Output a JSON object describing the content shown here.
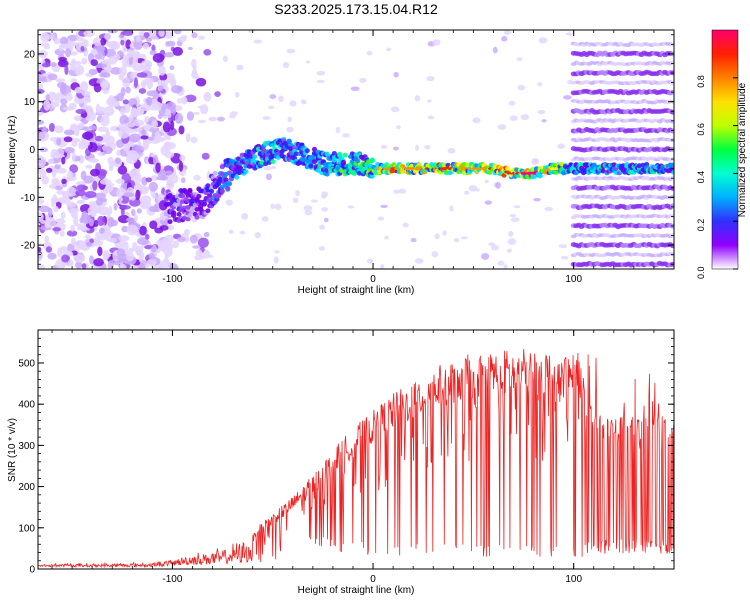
{
  "figure": {
    "title": "S233.2025.173.15.04.R12"
  },
  "chart_data": [
    {
      "type": "heatmap",
      "title": "S233.2025.173.15.04.R12",
      "xlabel": "Height of straight line (km)",
      "ylabel": "Frequency (Hz)",
      "xlim": [
        -167,
        150
      ],
      "ylim": [
        -25,
        25
      ],
      "xticks": [
        -100,
        0,
        100
      ],
      "xtick_labels": [
        "-100",
        "0",
        "100"
      ],
      "yticks": [
        -20,
        -10,
        0,
        10,
        20
      ],
      "ytick_labels": [
        "-20",
        "-10",
        "0",
        "10",
        "20"
      ],
      "grid": false,
      "colorbar": {
        "label": "Normalized spectral amplitude",
        "range": [
          0,
          1
        ],
        "ticks": [
          0,
          0.2,
          0.4,
          0.6,
          0.8
        ],
        "tick_labels": [
          "0.0",
          "0.2",
          "0.4",
          "0.6",
          "0.8"
        ],
        "colormap": [
          "#ffffff",
          "#e0d0ff",
          "#c8a8ff",
          "#9040f0",
          "#7000e8",
          "#3020ff",
          "#0090ff",
          "#00e0ff",
          "#00ff90",
          "#40ff00",
          "#c0ff00",
          "#ffff00",
          "#ff9000",
          "#ff2000",
          "#ff0070"
        ]
      },
      "ridge": {
        "x": [
          -100,
          -85,
          -75,
          -65,
          -55,
          -45,
          -35,
          -25,
          -15,
          -5,
          0,
          10,
          20,
          30,
          40,
          50,
          60,
          70,
          80,
          90,
          100,
          150
        ],
        "frequency": [
          -12,
          -11,
          -6,
          -3,
          -1,
          0,
          -1,
          -3,
          -3,
          -3,
          -4,
          -4,
          -4,
          -4,
          -4,
          -4,
          -4,
          -5,
          -5,
          -4,
          -4,
          -4
        ],
        "amplitude": [
          0.3,
          0.3,
          0.4,
          0.45,
          0.5,
          0.5,
          0.45,
          0.5,
          0.55,
          0.6,
          0.7,
          0.8,
          0.75,
          0.85,
          0.8,
          0.75,
          0.8,
          0.85,
          0.9,
          0.7,
          0.5,
          0.5
        ]
      }
    },
    {
      "type": "line",
      "xlabel": "Height of straight line (km)",
      "ylabel": "SNR (10 * v/v)",
      "xlim": [
        -167,
        150
      ],
      "ylim": [
        0,
        580
      ],
      "xticks": [
        -100,
        0,
        100
      ],
      "xtick_labels": [
        "-100",
        "0",
        "100"
      ],
      "yticks": [
        0,
        100,
        200,
        300,
        400,
        500
      ],
      "ytick_labels": [
        "0",
        "100",
        "200",
        "300",
        "400",
        "500"
      ],
      "grid": false,
      "series": [
        {
          "color": "#ee2222",
          "x": [
            -167,
            -150,
            -130,
            -110,
            -100,
            -90,
            -80,
            -70,
            -60,
            -50,
            -40,
            -30,
            -20,
            -10,
            0,
            10,
            20,
            30,
            40,
            50,
            60,
            70,
            80,
            90,
            100,
            104,
            106,
            115,
            125,
            135,
            150
          ],
          "envelope": [
            15,
            15,
            15,
            18,
            25,
            40,
            50,
            65,
            90,
            130,
            170,
            220,
            280,
            330,
            370,
            410,
            440,
            470,
            490,
            505,
            510,
            515,
            515,
            510,
            505,
            505,
            390,
            350,
            360,
            350,
            350
          ],
          "dip_to": [
            5,
            5,
            5,
            5,
            8,
            10,
            10,
            12,
            15,
            20,
            40,
            60,
            40,
            40,
            30,
            30,
            30,
            30,
            30,
            30,
            30,
            30,
            30,
            30,
            30,
            30,
            30,
            35,
            35,
            35,
            35
          ]
        }
      ]
    }
  ]
}
